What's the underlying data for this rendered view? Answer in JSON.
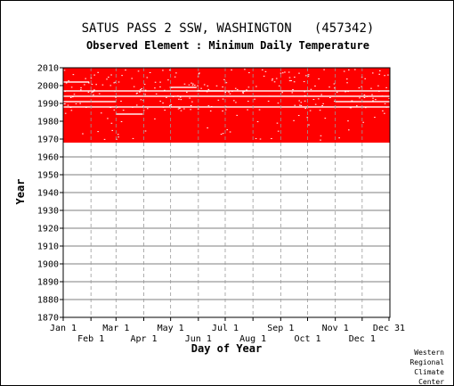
{
  "chart_data": {
    "type": "heatmap",
    "title": "SATUS PASS 2 SSW, WASHINGTON   (457342)",
    "subtitle": "Observed Element : Minimum Daily Temperature",
    "xlabel": "Day of Year",
    "ylabel": "Year",
    "ylim": [
      1870,
      2010
    ],
    "y_ticks": [
      "1870",
      "1880",
      "1890",
      "1900",
      "1910",
      "1920",
      "1930",
      "1940",
      "1950",
      "1960",
      "1970",
      "1980",
      "1990",
      "2000",
      "2010"
    ],
    "x_ticks_top_row": [
      {
        "label": "Jan 1",
        "day": 1
      },
      {
        "label": "Mar 1",
        "day": 60
      },
      {
        "label": "May 1",
        "day": 121
      },
      {
        "label": "Jul 1",
        "day": 182
      },
      {
        "label": "Sep 1",
        "day": 244
      },
      {
        "label": "Nov 1",
        "day": 305
      },
      {
        "label": "Dec 31",
        "day": 365
      }
    ],
    "x_ticks_bottom_row": [
      {
        "label": "Feb 1",
        "day": 32
      },
      {
        "label": "Apr 1",
        "day": 91
      },
      {
        "label": "Jun 1",
        "day": 152
      },
      {
        "label": "Aug 1",
        "day": 213
      },
      {
        "label": "Oct 1",
        "day": 274
      },
      {
        "label": "Dec 1",
        "day": 335
      }
    ],
    "data_color": "#ff0000",
    "observed_year_range": [
      1968,
      2010
    ],
    "gaps": [
      {
        "year": 1988,
        "day_start": 1,
        "day_end": 366
      },
      {
        "year": 1994,
        "day_start": 1,
        "day_end": 366
      },
      {
        "year": 1997,
        "day_start": 1,
        "day_end": 366
      },
      {
        "year": 1984,
        "day_start": 60,
        "day_end": 90
      },
      {
        "year": 1999,
        "day_start": 120,
        "day_end": 150
      },
      {
        "year": 1997,
        "day_start": 150,
        "day_end": 180
      },
      {
        "year": 2002,
        "day_start": 1,
        "day_end": 30
      },
      {
        "year": 1991,
        "day_start": 1,
        "day_end": 60
      },
      {
        "year": 1991,
        "day_start": 305,
        "day_end": 366
      }
    ],
    "grid": true
  },
  "credit": [
    "Western",
    "Regional",
    "Climate",
    "Center"
  ]
}
